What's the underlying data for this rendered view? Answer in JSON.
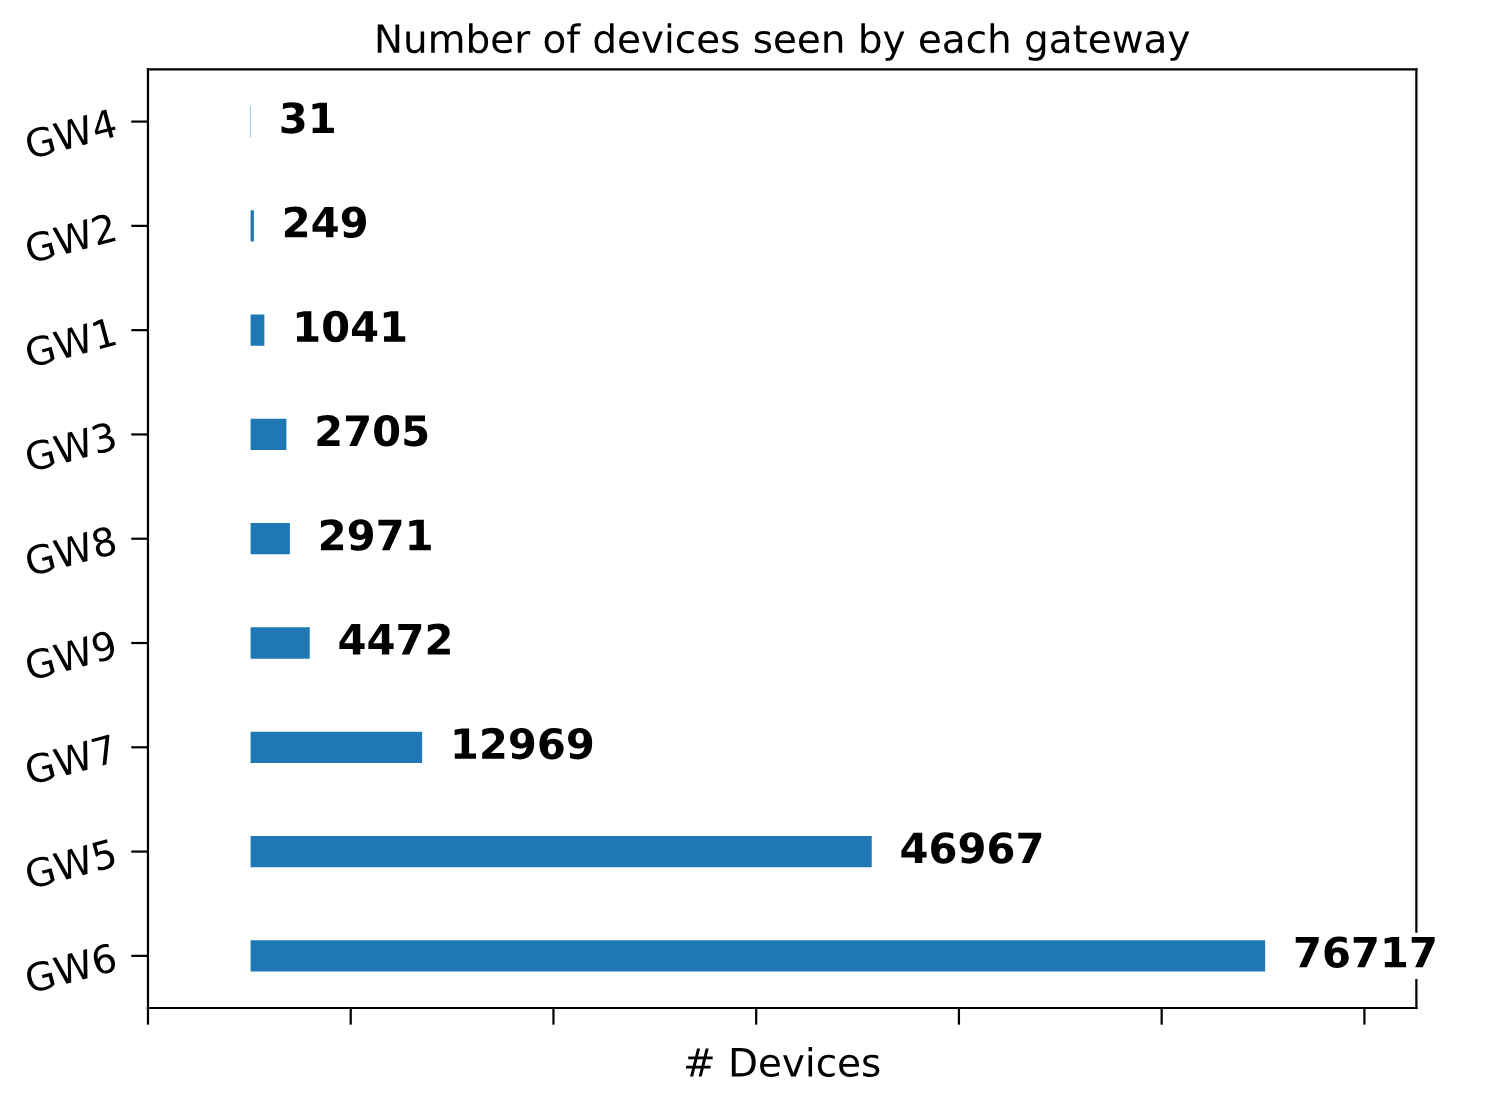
{
  "chart_data": {
    "type": "bar",
    "orientation": "horizontal",
    "title": "Number of devices seen by each gateway",
    "xlabel": "# Devices",
    "categories": [
      "GW4",
      "GW2",
      "GW1",
      "GW3",
      "GW8",
      "GW9",
      "GW7",
      "GW5",
      "GW6"
    ],
    "values": [
      31,
      249,
      1041,
      2705,
      2971,
      4472,
      12969,
      46967,
      76717
    ],
    "color": "#1f77b4",
    "data_labels": true,
    "grid": false,
    "xlim": [
      -7760,
      88150
    ],
    "xticks": [
      {
        "value": -7760,
        "label": null
      },
      {
        "value": 7570,
        "label": null
      },
      {
        "value": 22900,
        "label": null
      },
      {
        "value": 38230,
        "label": null
      },
      {
        "value": 53560,
        "label": null
      },
      {
        "value": 68890,
        "label": null
      },
      {
        "value": 84220,
        "label": null
      }
    ],
    "tick_labels": "y"
  }
}
